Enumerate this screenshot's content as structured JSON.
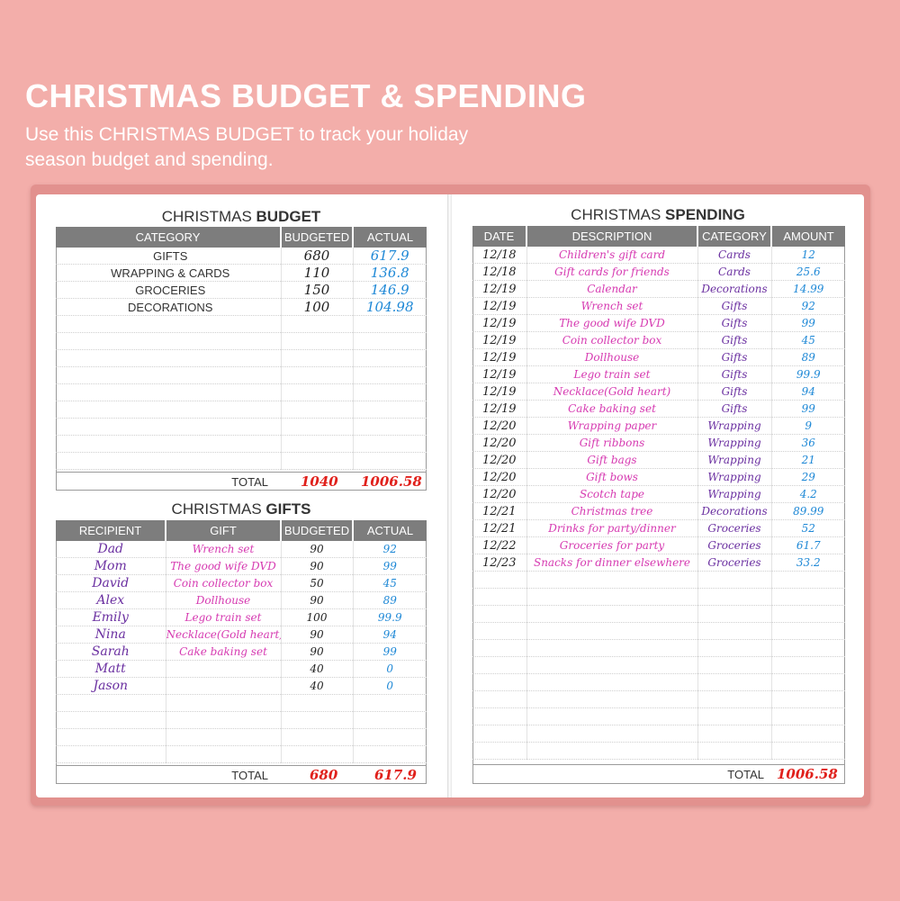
{
  "header": {
    "title": "CHRISTMAS BUDGET & SPENDING",
    "subtitle": "Use this CHRISTMAS BUDGET to track your holiday season budget and spending."
  },
  "budget": {
    "title_prefix": "CHRISTMAS ",
    "title_bold": "BUDGET",
    "columns": [
      "CATEGORY",
      "BUDGETED",
      "ACTUAL"
    ],
    "rows": [
      {
        "category": "GIFTS",
        "budgeted": "680",
        "actual": "617.9"
      },
      {
        "category": "WRAPPING & CARDS",
        "budgeted": "110",
        "actual": "136.8"
      },
      {
        "category": "GROCERIES",
        "budgeted": "150",
        "actual": "146.9"
      },
      {
        "category": "DECORATIONS",
        "budgeted": "100",
        "actual": "104.98"
      }
    ],
    "total_label": "TOTAL",
    "total_budgeted": "1040",
    "total_actual": "1006.58"
  },
  "gifts": {
    "title_prefix": "CHRISTMAS ",
    "title_bold": "GIFTS",
    "columns": [
      "RECIPIENT",
      "GIFT",
      "BUDGETED",
      "ACTUAL"
    ],
    "rows": [
      {
        "recipient": "Dad",
        "gift": "Wrench set",
        "budgeted": "90",
        "actual": "92"
      },
      {
        "recipient": "Mom",
        "gift": "The good wife DVD",
        "budgeted": "90",
        "actual": "99"
      },
      {
        "recipient": "David",
        "gift": "Coin collector box",
        "budgeted": "50",
        "actual": "45"
      },
      {
        "recipient": "Alex",
        "gift": "Dollhouse",
        "budgeted": "90",
        "actual": "89"
      },
      {
        "recipient": "Emily",
        "gift": "Lego train set",
        "budgeted": "100",
        "actual": "99.9"
      },
      {
        "recipient": "Nina",
        "gift": "Necklace(Gold heart)",
        "budgeted": "90",
        "actual": "94"
      },
      {
        "recipient": "Sarah",
        "gift": "Cake baking set",
        "budgeted": "90",
        "actual": "99"
      },
      {
        "recipient": "Matt",
        "gift": "",
        "budgeted": "40",
        "actual": "0"
      },
      {
        "recipient": "Jason",
        "gift": "",
        "budgeted": "40",
        "actual": "0"
      }
    ],
    "total_label": "TOTAL",
    "total_budgeted": "680",
    "total_actual": "617.9"
  },
  "spending": {
    "title_prefix": "CHRISTMAS ",
    "title_bold": "SPENDING",
    "columns": [
      "DATE",
      "DESCRIPTION",
      "CATEGORY",
      "AMOUNT"
    ],
    "rows": [
      {
        "date": "12/18",
        "description": "Children's gift card",
        "category": "Cards",
        "amount": "12"
      },
      {
        "date": "12/18",
        "description": "Gift cards for friends",
        "category": "Cards",
        "amount": "25.6"
      },
      {
        "date": "12/19",
        "description": "Calendar",
        "category": "Decorations",
        "amount": "14.99"
      },
      {
        "date": "12/19",
        "description": "Wrench set",
        "category": "Gifts",
        "amount": "92"
      },
      {
        "date": "12/19",
        "description": "The good wife DVD",
        "category": "Gifts",
        "amount": "99"
      },
      {
        "date": "12/19",
        "description": "Coin collector box",
        "category": "Gifts",
        "amount": "45"
      },
      {
        "date": "12/19",
        "description": "Dollhouse",
        "category": "Gifts",
        "amount": "89"
      },
      {
        "date": "12/19",
        "description": "Lego train set",
        "category": "Gifts",
        "amount": "99.9"
      },
      {
        "date": "12/19",
        "description": "Necklace(Gold heart)",
        "category": "Gifts",
        "amount": "94"
      },
      {
        "date": "12/19",
        "description": "Cake baking set",
        "category": "Gifts",
        "amount": "99"
      },
      {
        "date": "12/20",
        "description": "Wrapping paper",
        "category": "Wrapping",
        "amount": "9"
      },
      {
        "date": "12/20",
        "description": "Gift ribbons",
        "category": "Wrapping",
        "amount": "36"
      },
      {
        "date": "12/20",
        "description": "Gift bags",
        "category": "Wrapping",
        "amount": "21"
      },
      {
        "date": "12/20",
        "description": "Gift bows",
        "category": "Wrapping",
        "amount": "29"
      },
      {
        "date": "12/20",
        "description": "Scotch tape",
        "category": "Wrapping",
        "amount": "4.2"
      },
      {
        "date": "12/21",
        "description": "Christmas tree",
        "category": "Decorations",
        "amount": "89.99"
      },
      {
        "date": "12/21",
        "description": "Drinks for party/dinner",
        "category": "Groceries",
        "amount": "52"
      },
      {
        "date": "12/22",
        "description": "Groceries for party",
        "category": "Groceries",
        "amount": "61.7"
      },
      {
        "date": "12/23",
        "description": "Snacks for dinner elsewhere",
        "category": "Groceries",
        "amount": "33.2"
      }
    ],
    "total_label": "TOTAL",
    "total_amount": "1006.58"
  }
}
